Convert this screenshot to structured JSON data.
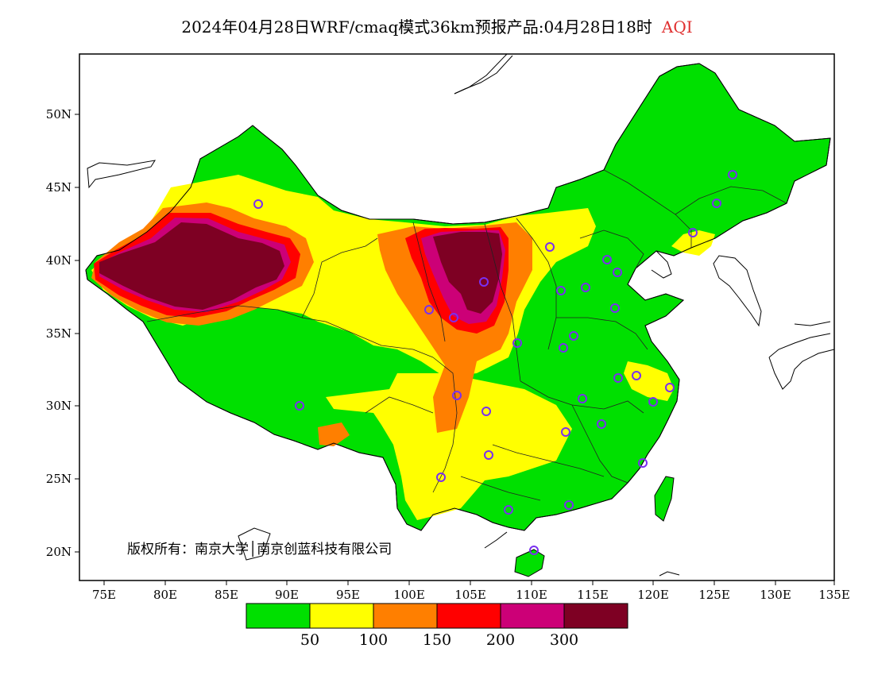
{
  "title": {
    "main": "2024年04月28日WRF/cmaq模式36km预报产品:04月28日18时",
    "variable": "AQI"
  },
  "axes": {
    "lat_ticks": [
      "50N",
      "45N",
      "40N",
      "35N",
      "30N",
      "25N",
      "20N"
    ],
    "lon_ticks": [
      "75E",
      "80E",
      "85E",
      "90E",
      "95E",
      "100E",
      "105E",
      "110E",
      "115E",
      "120E",
      "125E",
      "130E",
      "135E"
    ]
  },
  "copyright": "版权所有：南京大学│南京创蓝科技有限公司",
  "colorbar": {
    "colors": [
      "#00e000",
      "#ffff00",
      "#ff7f00",
      "#ff0000",
      "#cc0077",
      "#7e0023"
    ],
    "labels": [
      "50",
      "100",
      "150",
      "200",
      "300"
    ]
  },
  "station_marker_color": "#7a2ff0"
}
